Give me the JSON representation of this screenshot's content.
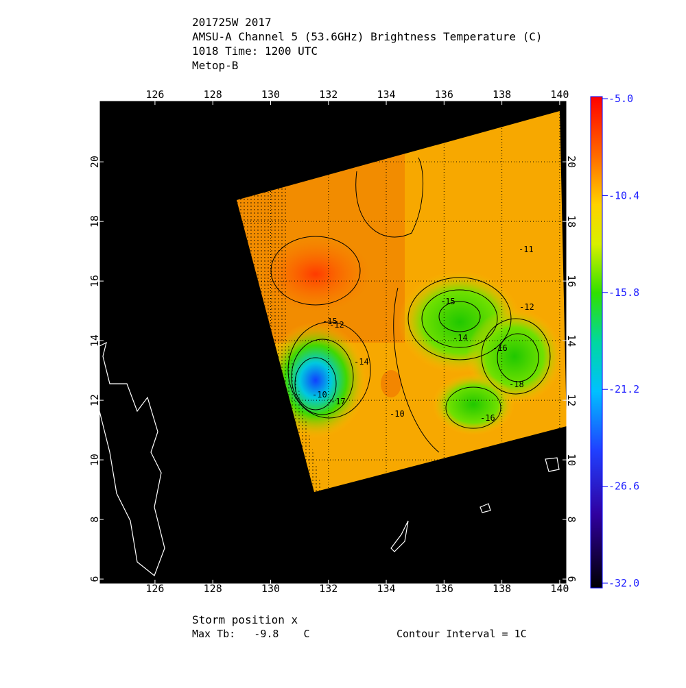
{
  "header": {
    "lines": [
      "201725W 2017",
      "AMSU-A Channel 5 (53.6GHz) Brightness Temperature (C)",
      "1018 Time: 1200 UTC",
      "Metop-B"
    ]
  },
  "map": {
    "xlim": [
      124.08,
      140.24
    ],
    "ylim": [
      5.84,
      22.05
    ],
    "xticks": [
      126,
      128,
      130,
      132,
      134,
      136,
      138,
      140
    ],
    "yticks": [
      6,
      8,
      10,
      12,
      14,
      16,
      18,
      20
    ],
    "contour_labels": [
      "-11",
      "-12",
      "-15",
      "-14",
      "-16",
      "-15",
      "-17",
      "-12",
      "-14",
      "-16",
      "-10",
      "-18",
      "-10"
    ]
  },
  "colorbar": {
    "lim": [
      -32,
      -5
    ],
    "ticks": [
      {
        "value": -5,
        "label": "-5.0"
      },
      -10.4,
      -15.8,
      -21.2,
      -26.6,
      {
        "value": -32,
        "label": "-32.0"
      }
    ]
  },
  "footer": {
    "storm": "Storm position x",
    "max_tb": "Max Tb:   -9.8    C",
    "interval": "Contour Interval = 1C"
  }
}
